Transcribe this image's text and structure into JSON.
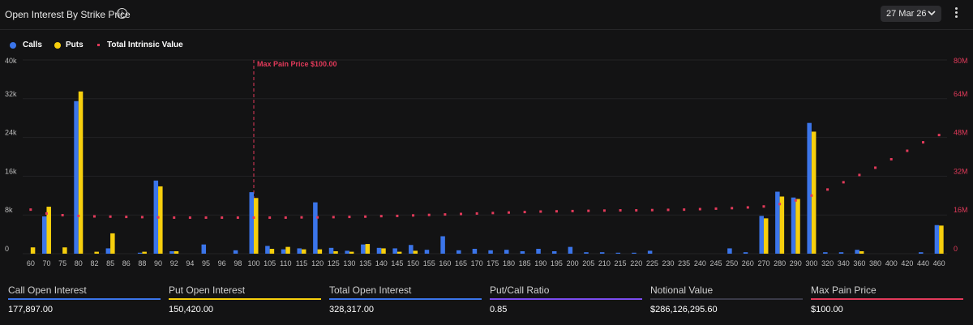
{
  "header": {
    "title": "Open Interest By Strike Price",
    "info_icon": "info-icon",
    "date_label": "27 Mar 26",
    "date_chevron_icon": "chevron-down-icon",
    "menu_icon": "more-vertical-icon"
  },
  "legend": [
    {
      "label": "Calls",
      "color": "#3b75ea"
    },
    {
      "label": "Puts",
      "color": "#f7cf0d"
    },
    {
      "label": "Total Intrinsic Value",
      "color": "#e23a5a"
    }
  ],
  "chart_data": {
    "type": "bar",
    "categories": [
      "60",
      "70",
      "75",
      "80",
      "82",
      "85",
      "86",
      "88",
      "90",
      "92",
      "94",
      "95",
      "96",
      "98",
      "100",
      "105",
      "110",
      "115",
      "120",
      "125",
      "130",
      "135",
      "140",
      "145",
      "150",
      "155",
      "160",
      "165",
      "170",
      "175",
      "180",
      "185",
      "190",
      "195",
      "200",
      "205",
      "210",
      "215",
      "220",
      "225",
      "230",
      "235",
      "240",
      "245",
      "250",
      "260",
      "270",
      "280",
      "290",
      "300",
      "320",
      "340",
      "360",
      "380",
      "400",
      "420",
      "440",
      "460"
    ],
    "y_left_ticks": [
      "0",
      "8k",
      "16k",
      "24k",
      "32k",
      "40k"
    ],
    "y_left_max": 40000,
    "y_right_ticks": [
      "0",
      "16M",
      "32M",
      "48M",
      "64M",
      "80M"
    ],
    "y_right_max": 80000000,
    "series": [
      {
        "name": "Calls",
        "type": "bar",
        "color": "#3b75ea",
        "values": [
          0,
          7700,
          0,
          31500,
          0,
          1100,
          0,
          200,
          15100,
          500,
          0,
          1900,
          0,
          700,
          12700,
          1600,
          900,
          1100,
          10600,
          1200,
          600,
          1900,
          1200,
          1100,
          1800,
          800,
          3600,
          700,
          1000,
          700,
          800,
          500,
          1000,
          500,
          1400,
          300,
          300,
          200,
          200,
          600,
          0,
          0,
          0,
          0,
          1100,
          300,
          7800,
          12800,
          11600,
          27000,
          300,
          300,
          800,
          0,
          0,
          0,
          300,
          5900
        ]
      },
      {
        "name": "Puts",
        "type": "bar",
        "color": "#f7cf0d",
        "values": [
          1300,
          9700,
          1300,
          33500,
          400,
          4200,
          0,
          400,
          13900,
          500,
          0,
          0,
          0,
          0,
          11500,
          1000,
          1400,
          900,
          900,
          500,
          400,
          2000,
          1100,
          400,
          600,
          0,
          0,
          0,
          0,
          0,
          0,
          0,
          0,
          0,
          0,
          0,
          0,
          0,
          0,
          0,
          0,
          0,
          0,
          0,
          0,
          0,
          7300,
          11800,
          11300,
          25200,
          0,
          0,
          500,
          0,
          0,
          0,
          0,
          5800
        ]
      },
      {
        "name": "Total Intrinsic Value",
        "type": "scatter",
        "color": "#e23a5a",
        "values": [
          18200000,
          16600000,
          15900000,
          15600000,
          15400000,
          15300000,
          15200000,
          15100000,
          15000000,
          14900000,
          14900000,
          14900000,
          14900000,
          14900000,
          14900000,
          14900000,
          14900000,
          15000000,
          15000000,
          15100000,
          15200000,
          15300000,
          15500000,
          15600000,
          15800000,
          16000000,
          16200000,
          16400000,
          16600000,
          16800000,
          17000000,
          17200000,
          17400000,
          17500000,
          17600000,
          17700000,
          17800000,
          17900000,
          17900000,
          18000000,
          18100000,
          18200000,
          18400000,
          18600000,
          18800000,
          19100000,
          19500000,
          20500000,
          22000000,
          24000000,
          26500000,
          29500000,
          32500000,
          35500000,
          39000000,
          42500000,
          46000000,
          49000000
        ]
      }
    ],
    "annotation": {
      "label": "Max Pain Price $100.00",
      "x": "100"
    }
  },
  "stats": [
    {
      "label": "Call Open Interest",
      "value": "177,897.00",
      "color": "#3b75ea"
    },
    {
      "label": "Put Open Interest",
      "value": "150,420.00",
      "color": "#f7cf0d"
    },
    {
      "label": "Total Open Interest",
      "value": "328,317.00",
      "color": "#3b75ea"
    },
    {
      "label": "Put/Call Ratio",
      "value": "0.85",
      "color": "#7b4cf0"
    },
    {
      "label": "Notional Value",
      "value": "$286,126,295.60",
      "color": "#3a3a48"
    },
    {
      "label": "Max Pain Price",
      "value": "$100.00",
      "color": "#e23a5a"
    }
  ]
}
